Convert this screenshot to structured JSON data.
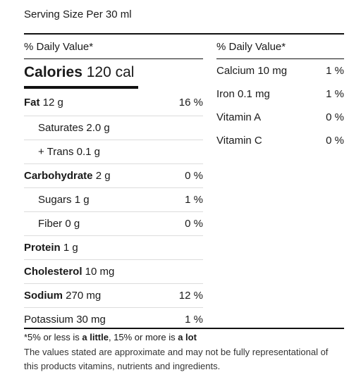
{
  "serving": "Serving Size Per 30 ml",
  "daily_value_header": "% Daily Value*",
  "calories": {
    "label": "Calories",
    "value": "120 cal"
  },
  "left_rows": [
    {
      "label_bold": "Fat",
      "label": " 12 g",
      "percent": "16 %",
      "indent": false
    },
    {
      "label_bold": "",
      "label": "Saturates 2.0 g",
      "percent": "",
      "indent": true
    },
    {
      "label_bold": "",
      "label": "+ Trans 0.1 g",
      "percent": "",
      "indent": true
    },
    {
      "label_bold": "Carbohydrate",
      "label": " 2 g",
      "percent": "0 %",
      "indent": false
    },
    {
      "label_bold": "",
      "label": "Sugars 1 g",
      "percent": "1 %",
      "indent": true
    },
    {
      "label_bold": "",
      "label": "Fiber 0 g",
      "percent": "0 %",
      "indent": true
    },
    {
      "label_bold": "Protein",
      "label": " 1 g",
      "percent": "",
      "indent": false
    },
    {
      "label_bold": "Cholesterol",
      "label": " 10 mg",
      "percent": "",
      "indent": false
    },
    {
      "label_bold": "Sodium",
      "label": " 270 mg",
      "percent": "12 %",
      "indent": false
    },
    {
      "label_bold": "",
      "label": "Potassium 30 mg",
      "percent": "1 %",
      "indent": false
    }
  ],
  "right_rows": [
    {
      "label": "Calcium 10 mg",
      "percent": "1 %"
    },
    {
      "label": "Iron 0.1 mg",
      "percent": "1 %"
    },
    {
      "label": "Vitamin A",
      "percent": "0 %"
    },
    {
      "label": "Vitamin C",
      "percent": "0 %"
    }
  ],
  "footnote": {
    "prefix": "*5% or less is ",
    "little": "a little",
    "middle": ", 15% or more is ",
    "lot": "a lot"
  },
  "disclaimer": "The values stated are approximate and may not be fully representational of this products vitamins, nutrients and ingredients."
}
